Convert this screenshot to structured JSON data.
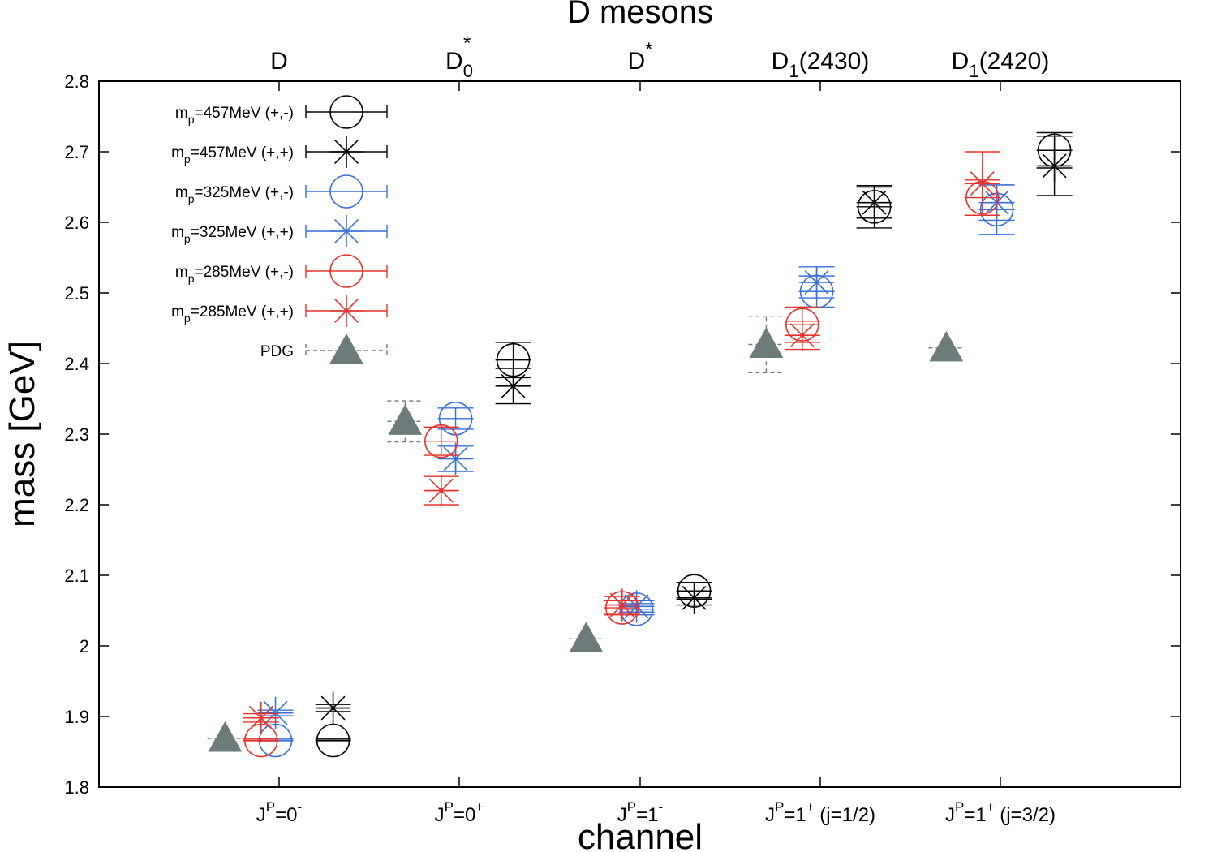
{
  "chart_data": {
    "type": "scatter",
    "title": "D mesons",
    "xlabel": "channel",
    "ylabel": "mass [GeV]",
    "ylim": [
      1.8,
      2.8
    ],
    "yticks": [
      "1.8",
      "1.9",
      "2",
      "2.1",
      "2.2",
      "2.3",
      "2.4",
      "2.5",
      "2.6",
      "2.7",
      "2.8"
    ],
    "grid": false,
    "legend_position": "top-left",
    "categories": [
      {
        "bottom_main": "J",
        "bottom_sup": "P",
        "bottom_rest": "=0",
        "bottom_rest_sup": "-",
        "bottom_tail": "",
        "top_main": "D",
        "top_sub": "",
        "top_sup": "",
        "top_tail": ""
      },
      {
        "bottom_main": "J",
        "bottom_sup": "P",
        "bottom_rest": "=0",
        "bottom_rest_sup": "+",
        "bottom_tail": "",
        "top_main": "D",
        "top_sub": "0",
        "top_sup": "*",
        "top_tail": ""
      },
      {
        "bottom_main": "J",
        "bottom_sup": "P",
        "bottom_rest": "=1",
        "bottom_rest_sup": "-",
        "bottom_tail": "",
        "top_main": "D",
        "top_sub": "",
        "top_sup": "*",
        "top_tail": ""
      },
      {
        "bottom_main": "J",
        "bottom_sup": "P",
        "bottom_rest": "=1",
        "bottom_rest_sup": "+",
        "bottom_tail": " (j=1/2)",
        "top_main": "D",
        "top_sub": "1",
        "top_sup": "",
        "top_tail": "(2430)"
      },
      {
        "bottom_main": "J",
        "bottom_sup": "P",
        "bottom_rest": "=1",
        "bottom_rest_sup": "+",
        "bottom_tail": " (j=3/2)",
        "top_main": "D",
        "top_sub": "1",
        "top_sup": "",
        "top_tail": "(2420)"
      }
    ],
    "series": [
      {
        "name": "m_p=457MeV (+,-)",
        "label_main": "m",
        "label_sub": "p",
        "label_rest": "=457MeV  (+,-)",
        "marker": "circle",
        "color": "#000000",
        "offset": 0.3,
        "values": [
          1.866,
          2.405,
          2.078,
          2.622,
          2.702
        ],
        "errors": [
          0.002,
          0.025,
          0.012,
          0.03,
          0.025
        ]
      },
      {
        "name": "m_p=457MeV (+,+)",
        "label_main": "m",
        "label_sub": "p",
        "label_rest": "=457MeV  (+,+)",
        "marker": "star",
        "color": "#000000",
        "offset": 0.3,
        "values": [
          1.912,
          2.368,
          2.068,
          2.628,
          2.68
        ],
        "errors": [
          0.005,
          0.025,
          0.01,
          0.022,
          0.042
        ]
      },
      {
        "name": "m_p=325MeV (+,-)",
        "label_main": "m",
        "label_sub": "p",
        "label_rest": "=325MeV  (+,-)",
        "marker": "circle",
        "color": "#3a6fd8",
        "offset": -0.02,
        "values": [
          1.866,
          2.322,
          2.052,
          2.502,
          2.618
        ],
        "errors": [
          0.002,
          0.015,
          0.008,
          0.022,
          0.035
        ]
      },
      {
        "name": "m_p=325MeV (+,+)",
        "label_main": "m",
        "label_sub": "p",
        "label_rest": "=325MeV  (+,+)",
        "marker": "star",
        "color": "#3a6fd8",
        "offset": -0.02,
        "values": [
          1.905,
          2.265,
          2.056,
          2.515,
          2.628
        ],
        "errors": [
          0.004,
          0.018,
          0.008,
          0.022,
          0.025
        ]
      },
      {
        "name": "m_p=285MeV (+,-)",
        "label_main": "m",
        "label_sub": "p",
        "label_rest": "=285MeV  (+,-)",
        "marker": "circle",
        "color": "#e8312a",
        "offset": -0.1,
        "values": [
          1.866,
          2.29,
          2.054,
          2.455,
          2.635
        ],
        "errors": [
          0.002,
          0.02,
          0.01,
          0.025,
          0.025
        ]
      },
      {
        "name": "m_p=285MeV (+,+)",
        "label_main": "m",
        "label_sub": "p",
        "label_rest": "=285MeV  (+,+)",
        "marker": "star",
        "color": "#e8312a",
        "offset": -0.1,
        "values": [
          1.898,
          2.22,
          2.058,
          2.44,
          2.655
        ],
        "errors": [
          0.006,
          0.02,
          0.012,
          0.02,
          0.045
        ]
      },
      {
        "name": "PDG",
        "label_main": "PDG",
        "label_sub": "",
        "label_rest": "",
        "marker": "triangle",
        "color": "#6e7b7b",
        "offset": -0.3,
        "values": [
          1.869,
          2.318,
          2.01,
          2.427,
          2.422
        ],
        "errors": [
          0.0,
          0.029,
          0.0,
          0.04,
          0.0
        ]
      }
    ]
  }
}
